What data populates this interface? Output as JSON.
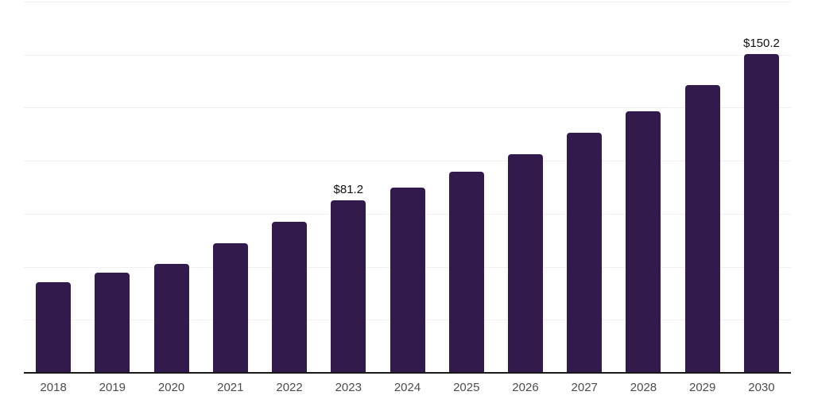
{
  "chart_data": {
    "type": "bar",
    "title": "",
    "xlabel": "",
    "ylabel": "",
    "categories": [
      "2018",
      "2019",
      "2020",
      "2021",
      "2022",
      "2023",
      "2024",
      "2025",
      "2026",
      "2027",
      "2028",
      "2029",
      "2030"
    ],
    "values": [
      42.6,
      47.3,
      51.4,
      61.2,
      71.3,
      81.2,
      87.5,
      95.0,
      103.2,
      113.3,
      123.4,
      135.7,
      150.2
    ],
    "point_labels": [
      "",
      "",
      "",
      "",
      "",
      "$81.2",
      "",
      "",
      "",
      "",
      "",
      "",
      "$150.2"
    ],
    "ylim": [
      0,
      175
    ],
    "gridline_values": [
      25,
      50,
      75,
      100,
      125,
      150,
      175
    ],
    "grid": "horizontal",
    "legend_position": "none",
    "colors": {
      "bar_fill": "#331a4d",
      "axis_line": "#1a1a1a",
      "gridline": "#f0f0f2",
      "tick_label": "#4d4d4d",
      "value_label": "#111111",
      "background": "#ffffff"
    }
  }
}
